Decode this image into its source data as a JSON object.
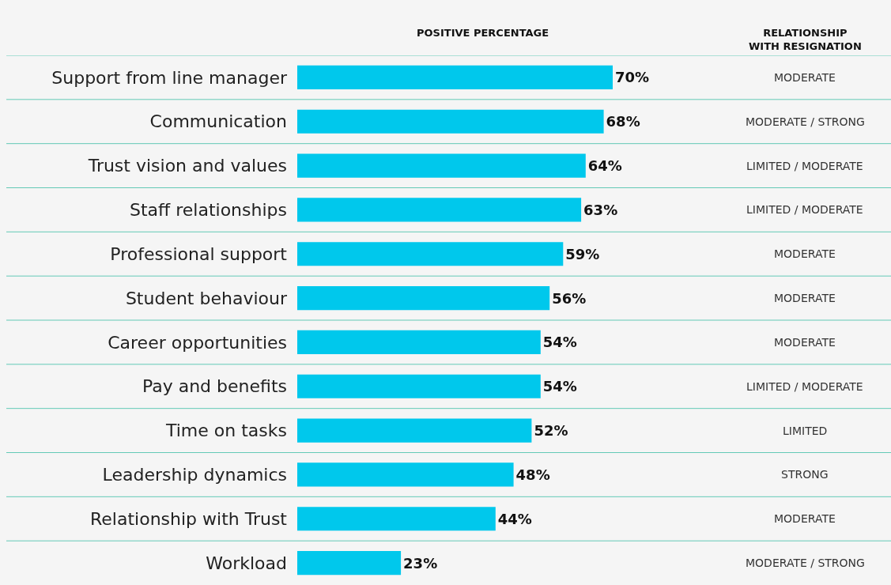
{
  "chart_data": {
    "type": "bar",
    "orientation": "horizontal",
    "title": "POSITIVE PERCENTAGE",
    "categories": [
      "Support from line manager",
      "Communication",
      "Trust vision and values",
      "Staff relationships",
      "Professional support",
      "Student behaviour",
      "Career opportunities",
      "Pay and benefits",
      "Time on tasks",
      "Leadership dynamics",
      "Relationship with Trust",
      "Workload"
    ],
    "values": [
      70,
      68,
      64,
      63,
      59,
      56,
      54,
      54,
      52,
      48,
      44,
      23
    ],
    "value_labels": [
      "70%",
      "68%",
      "64%",
      "63%",
      "59%",
      "56%",
      "54%",
      "54%",
      "52%",
      "48%",
      "44%",
      "23%"
    ],
    "color": "#00c8ec",
    "annotations": [
      "RELATIONSHIP WITH RESIGNATION",
      "MODERATE",
      "MODERATE / STRONG",
      "LIMITED / MODERATE",
      "LIMITED / MODERATE",
      "MODERATE",
      "MODERATE",
      "MODERATE",
      "LIMITED / MODERATE",
      "LIMITED",
      "STRONG",
      "MODERATE",
      "MODERATE / STRONG"
    ],
    "grid": false,
    "tick_labels": "y"
  }
}
